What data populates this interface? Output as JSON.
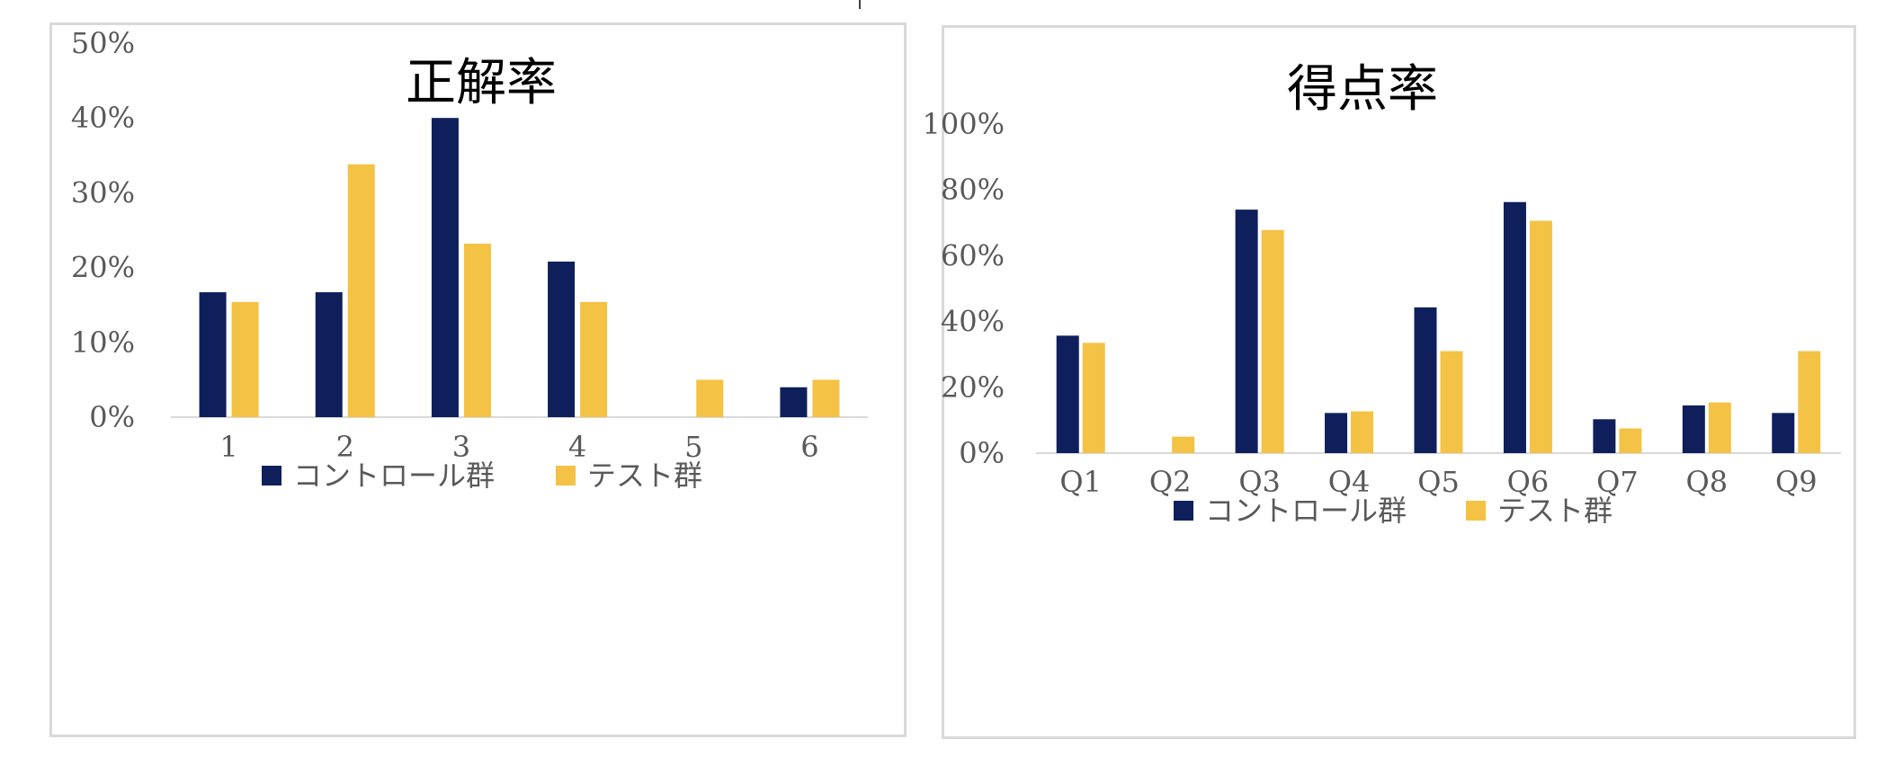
{
  "colors": {
    "control": "#0e1f5b",
    "test": "#f4c244",
    "axis": "#d9d9d9",
    "text": "#595959"
  },
  "chart_data": [
    {
      "type": "bar",
      "title": "正解率",
      "categories": [
        "1",
        "2",
        "3",
        "4",
        "5",
        "6"
      ],
      "series": [
        {
          "name": "コントロール群",
          "values": [
            0.167,
            0.167,
            0.4,
            0.208,
            null,
            0.04
          ]
        },
        {
          "name": "テスト群",
          "values": [
            0.154,
            0.338,
            0.232,
            0.154,
            0.05,
            0.05
          ]
        }
      ],
      "ylim": [
        0,
        0.5
      ],
      "yticks": [
        "0%",
        "10%",
        "20%",
        "30%",
        "40%",
        "50%"
      ],
      "legend": "bottom",
      "grid": false
    },
    {
      "type": "bar",
      "title": "得点率",
      "categories": [
        "Q1",
        "Q2",
        "Q3",
        "Q4",
        "Q5",
        "Q6",
        "Q7",
        "Q8",
        "Q9"
      ],
      "series": [
        {
          "name": "コントロール群",
          "values": [
            0.357,
            null,
            0.74,
            0.122,
            0.443,
            0.763,
            0.103,
            0.145,
            0.122
          ]
        },
        {
          "name": "テスト群",
          "values": [
            0.335,
            0.05,
            0.678,
            0.127,
            0.31,
            0.706,
            0.075,
            0.154,
            0.31
          ]
        }
      ],
      "ylim": [
        0,
        1
      ],
      "yticks": [
        "0%",
        "20%",
        "40%",
        "60%",
        "80%",
        "100%"
      ],
      "legend": "bottom",
      "grid": false
    }
  ]
}
